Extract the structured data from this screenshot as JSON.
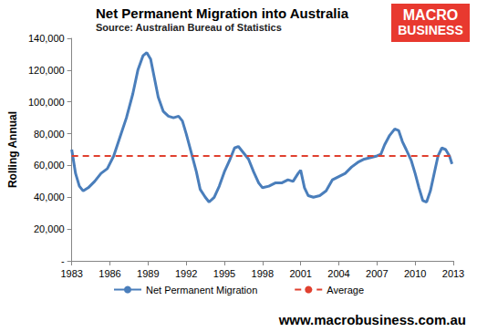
{
  "chart_data": {
    "type": "line",
    "title": "Net Permanent Migration into Australia",
    "subtitle": "Source: Australian Bureau of Statistics",
    "y_label": "Rolling Annual",
    "annotations": [
      "MACRO",
      "BUSINESS",
      "www.macrobusiness.com.au"
    ],
    "x": [
      1983.0,
      1983.3,
      1983.6,
      1983.9,
      1984.3,
      1984.8,
      1985.3,
      1985.8,
      1986.3,
      1986.8,
      1987.3,
      1987.8,
      1988.2,
      1988.6,
      1988.9,
      1989.2,
      1989.5,
      1989.8,
      1990.2,
      1990.6,
      1991.0,
      1991.4,
      1991.7,
      1992.0,
      1992.4,
      1992.8,
      1993.1,
      1993.5,
      1993.8,
      1994.2,
      1994.6,
      1995.0,
      1995.4,
      1995.8,
      1996.1,
      1996.5,
      1996.9,
      1997.3,
      1997.7,
      1998.0,
      1998.5,
      1999.0,
      1999.5,
      2000.0,
      2000.4,
      2000.8,
      2001.0,
      2001.3,
      2001.6,
      2002.0,
      2002.5,
      2003.0,
      2003.5,
      2004.0,
      2004.5,
      2005.0,
      2005.5,
      2006.0,
      2006.5,
      2007.0,
      2007.3,
      2007.6,
      2008.0,
      2008.4,
      2008.7,
      2009.0,
      2009.3,
      2009.7,
      2010.0,
      2010.3,
      2010.6,
      2010.9,
      2011.2,
      2011.5,
      2011.8,
      2012.1,
      2012.4,
      2012.7,
      2012.9
    ],
    "series": [
      {
        "name": "Net Permanent Migration",
        "color": "#4a7ebb",
        "line_style": "solid",
        "values": [
          70000,
          55000,
          47000,
          44000,
          46000,
          50000,
          55000,
          58000,
          66000,
          78000,
          90000,
          105000,
          120000,
          129000,
          131000,
          127000,
          115000,
          103000,
          94000,
          91000,
          90000,
          91000,
          88000,
          80000,
          68000,
          56000,
          45000,
          40000,
          37000,
          40000,
          47000,
          56000,
          63000,
          71000,
          72000,
          68000,
          64000,
          56000,
          49000,
          46000,
          47000,
          49000,
          49000,
          51000,
          50000,
          55000,
          57000,
          46000,
          41000,
          40000,
          41000,
          44000,
          51000,
          53000,
          55000,
          59000,
          62000,
          64000,
          65000,
          66000,
          67000,
          73000,
          79000,
          83000,
          82000,
          75000,
          70000,
          63000,
          55000,
          46000,
          38000,
          37000,
          44000,
          55000,
          66000,
          71000,
          70000,
          66000,
          61000
        ]
      },
      {
        "name": "Average",
        "color": "#e0402f",
        "line_style": "dashed",
        "values": [
          66000,
          66000,
          66000,
          66000,
          66000,
          66000,
          66000,
          66000,
          66000,
          66000,
          66000,
          66000,
          66000,
          66000,
          66000,
          66000,
          66000,
          66000,
          66000,
          66000,
          66000,
          66000,
          66000,
          66000,
          66000,
          66000,
          66000,
          66000,
          66000,
          66000,
          66000,
          66000,
          66000,
          66000,
          66000,
          66000,
          66000,
          66000,
          66000,
          66000,
          66000,
          66000,
          66000,
          66000,
          66000,
          66000,
          66000,
          66000,
          66000,
          66000,
          66000,
          66000,
          66000,
          66000,
          66000,
          66000,
          66000,
          66000,
          66000,
          66000,
          66000,
          66000,
          66000,
          66000,
          66000,
          66000,
          66000,
          66000,
          66000,
          66000,
          66000,
          66000,
          66000,
          66000,
          66000,
          66000,
          66000,
          66000,
          66000
        ]
      }
    ],
    "xlim": [
      1983,
      2013
    ],
    "xticks": [
      1983,
      1986,
      1989,
      1992,
      1995,
      1998,
      2001,
      2004,
      2007,
      2010,
      2013
    ],
    "ylim": [
      0,
      140000
    ],
    "yticks": [
      {
        "value": 0,
        "label": "-"
      },
      {
        "value": 20000,
        "label": "20,000"
      },
      {
        "value": 40000,
        "label": "40,000"
      },
      {
        "value": 60000,
        "label": "60,000"
      },
      {
        "value": 80000,
        "label": "80,000"
      },
      {
        "value": 100000,
        "label": "100,000"
      },
      {
        "value": 120000,
        "label": "120,000"
      },
      {
        "value": 140000,
        "label": "140,000"
      }
    ],
    "grid": false,
    "legend": "bottom"
  }
}
